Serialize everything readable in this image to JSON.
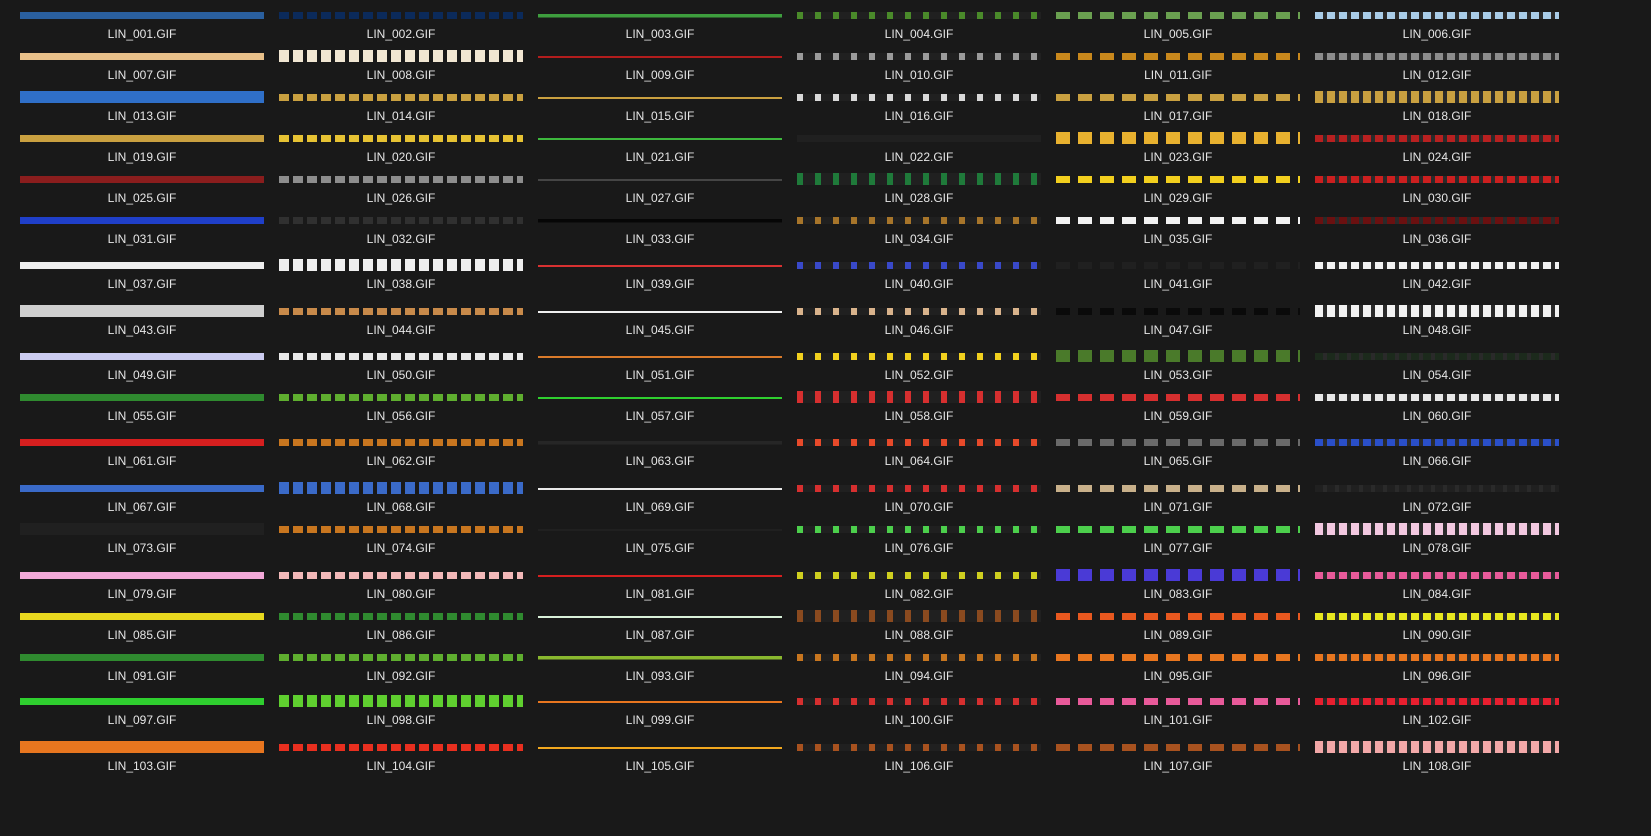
{
  "window": {
    "view": "icons",
    "background": "#191919",
    "label_color": "#e6e6e6"
  },
  "files": [
    "LIN_001.GIF",
    "LIN_002.GIF",
    "LIN_003.GIF",
    "LIN_004.GIF",
    "LIN_005.GIF",
    "LIN_006.GIF",
    "LIN_007.GIF",
    "LIN_008.GIF",
    "LIN_009.GIF",
    "LIN_010.GIF",
    "LIN_011.GIF",
    "LIN_012.GIF",
    "LIN_013.GIF",
    "LIN_014.GIF",
    "LIN_015.GIF",
    "LIN_016.GIF",
    "LIN_017.GIF",
    "LIN_018.GIF",
    "LIN_019.GIF",
    "LIN_020.GIF",
    "LIN_021.GIF",
    "LIN_022.GIF",
    "LIN_023.GIF",
    "LIN_024.GIF",
    "LIN_025.GIF",
    "LIN_026.GIF",
    "LIN_027.GIF",
    "LIN_028.GIF",
    "LIN_029.GIF",
    "LIN_030.GIF",
    "LIN_031.GIF",
    "LIN_032.GIF",
    "LIN_033.GIF",
    "LIN_034.GIF",
    "LIN_035.GIF",
    "LIN_036.GIF",
    "LIN_037.GIF",
    "LIN_038.GIF",
    "LIN_039.GIF",
    "LIN_040.GIF",
    "LIN_041.GIF",
    "LIN_042.GIF",
    "LIN_043.GIF",
    "LIN_044.GIF",
    "LIN_045.GIF",
    "LIN_046.GIF",
    "LIN_047.GIF",
    "LIN_048.GIF",
    "LIN_049.GIF",
    "LIN_050.GIF",
    "LIN_051.GIF",
    "LIN_052.GIF",
    "LIN_053.GIF",
    "LIN_054.GIF",
    "LIN_055.GIF",
    "LIN_056.GIF",
    "LIN_057.GIF",
    "LIN_058.GIF",
    "LIN_059.GIF",
    "LIN_060.GIF",
    "LIN_061.GIF",
    "LIN_062.GIF",
    "LIN_063.GIF",
    "LIN_064.GIF",
    "LIN_065.GIF",
    "LIN_066.GIF",
    "LIN_067.GIF",
    "LIN_068.GIF",
    "LIN_069.GIF",
    "LIN_070.GIF",
    "LIN_071.GIF",
    "LIN_072.GIF",
    "LIN_073.GIF",
    "LIN_074.GIF",
    "LIN_075.GIF",
    "LIN_076.GIF",
    "LIN_077.GIF",
    "LIN_078.GIF",
    "LIN_079.GIF",
    "LIN_080.GIF",
    "LIN_081.GIF",
    "LIN_082.GIF",
    "LIN_083.GIF",
    "LIN_084.GIF",
    "LIN_085.GIF",
    "LIN_086.GIF",
    "LIN_087.GIF",
    "LIN_088.GIF",
    "LIN_089.GIF",
    "LIN_090.GIF",
    "LIN_091.GIF",
    "LIN_092.GIF",
    "LIN_093.GIF",
    "LIN_094.GIF",
    "LIN_095.GIF",
    "LIN_096.GIF",
    "LIN_097.GIF",
    "LIN_098.GIF",
    "LIN_099.GIF",
    "LIN_100.GIF",
    "LIN_101.GIF",
    "LIN_102.GIF",
    "LIN_103.GIF",
    "LIN_104.GIF",
    "LIN_105.GIF",
    "LIN_106.GIF",
    "LIN_107.GIF",
    "LIN_108.GIF"
  ],
  "thumbnail_colors": [
    "#2a5f9e",
    "#0b2a5a",
    "#3e9e3e",
    "#4a8a2a",
    "#6aa050",
    "#a9cce8",
    "#e8c08a",
    "#f1e6d2",
    "#b31d1d",
    "#9b9b9b",
    "#c9881c",
    "#8d8d8d",
    "#2f6fc8",
    "#c9a040",
    "#c9a040",
    "#d9d9d9",
    "#c9a040",
    "#c9a040",
    "#c9a040",
    "#e6c233",
    "#3db83d",
    "#202020",
    "#e8b12f",
    "#b82020",
    "#8a1d1d",
    "#8d8d8d",
    "#454545",
    "#1f7a3a",
    "#f2cf1e",
    "#cc1f1f",
    "#1f3fc9",
    "#303030",
    "#060606",
    "#a7752a",
    "#f2f2f2",
    "#6a1010",
    "#eeeeee",
    "#eeeeee",
    "#d83131",
    "#3949c9",
    "#202020",
    "#f2f2f2",
    "#cfcfcf",
    "#c88a4a",
    "#efefef",
    "#d9b38c",
    "#0a0a0a",
    "#f2f2f2",
    "#ccccf0",
    "#e8e8e8",
    "#d97a2a",
    "#f2d11e",
    "#4a7a2a",
    "#1c2a1c",
    "#2f8a2f",
    "#5fae2f",
    "#2fcf2f",
    "#d62f2f",
    "#d62f2f",
    "#e8e8e8",
    "#d61f1f",
    "#c8761f",
    "#262626",
    "#e84a2a",
    "#6a6a6a",
    "#2a4fc8",
    "#3a6ac8",
    "#3a6ac8",
    "#e8e8e8",
    "#d62f2f",
    "#c8b08a",
    "#202020",
    "#202020",
    "#c8761f",
    "#202020",
    "#4ccf4c",
    "#4ccf4c",
    "#f2c8e0",
    "#f2a8d8",
    "#f2b8b8",
    "#d61f1f",
    "#cfcf1f",
    "#4a3ad6",
    "#e85a9a",
    "#e8d81f",
    "#2f8a2f",
    "#d8f0d8",
    "#8a4a1f",
    "#e8581f",
    "#e8e81f",
    "#2f8a2f",
    "#5fae2f",
    "#8ab82f",
    "#c8761f",
    "#e8761f",
    "#e8761f",
    "#2fcf2f",
    "#5fcf2f",
    "#e8761f",
    "#d62f2f",
    "#e85a9a",
    "#e81f2f",
    "#e8761f",
    "#e82f1f",
    "#f2a81f",
    "#a8521f",
    "#a8521f",
    "#f2a8a8"
  ]
}
